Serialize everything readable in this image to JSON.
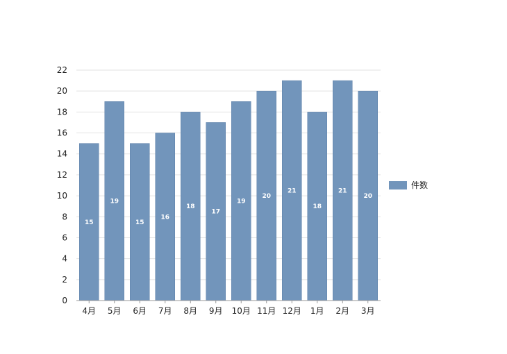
{
  "chart_data": {
    "type": "bar",
    "categories": [
      "4月",
      "5月",
      "6月",
      "7月",
      "8月",
      "9月",
      "10月",
      "11月",
      "12月",
      "1月",
      "2月",
      "3月"
    ],
    "series": [
      {
        "name": "件数",
        "values": [
          15,
          19,
          15,
          16,
          18,
          17,
          19,
          20,
          21,
          18,
          21,
          20
        ]
      }
    ],
    "yticks": [
      "0",
      "2",
      "4",
      "6",
      "8",
      "10",
      "12",
      "14",
      "16",
      "18",
      "20",
      "22"
    ],
    "ylim": [
      0,
      22
    ],
    "grid": true,
    "legend": "right",
    "bar_color": "#7295bb",
    "data_labels": true
  }
}
